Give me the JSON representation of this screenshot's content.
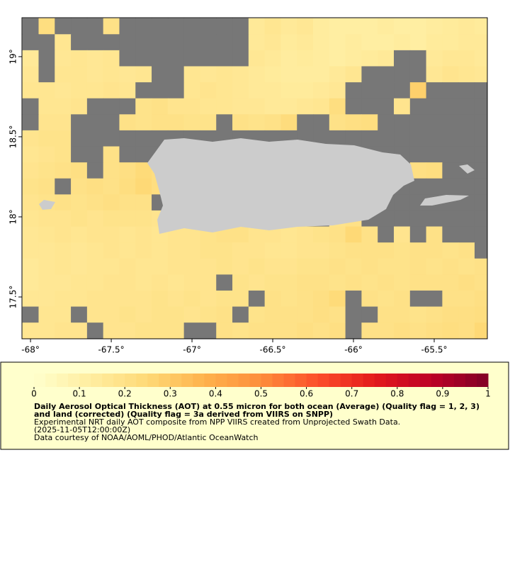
{
  "chart_data": {
    "type": "heatmap",
    "title": "Daily Aerosol Optical Thickness (AOT) at 0.55 micron for both ocean (Average) (Quality flag = 1, 2, 3) and land (corrected) (Quality flag = 3a derived from VIIRS on SNPP)",
    "notes": [
      "Experimental NRT daily AOT composite from NPP VIIRS created from Unprojected Swath Data.",
      "(2025-11-05T12:00:00Z)",
      "Data courtesy of NOAA/AOML/PHOD/Atlantic OceanWatch"
    ],
    "xlim": [
      -68.053,
      -65.171
    ],
    "ylim": [
      17.239,
      19.243
    ],
    "xticks": [
      {
        "value": -68,
        "label": "-68°"
      },
      {
        "value": -67.5,
        "label": "-67.5°"
      },
      {
        "value": -67,
        "label": "-67°"
      },
      {
        "value": -66.5,
        "label": "-66.5°"
      },
      {
        "value": -66,
        "label": "-66°"
      },
      {
        "value": -65.5,
        "label": "-65.5°"
      }
    ],
    "yticks": [
      {
        "value": 17.5,
        "label": "17.5°"
      },
      {
        "value": 18,
        "label": "18°"
      },
      {
        "value": 18.5,
        "label": "18.5°"
      },
      {
        "value": 19,
        "label": "19°"
      }
    ],
    "x": [
      -68.0,
      -67.9,
      -67.8,
      -67.7,
      -67.6,
      -67.5,
      -67.4,
      -67.3,
      -67.2,
      -67.1,
      -67.0,
      -66.9,
      -66.8,
      -66.7,
      -66.6,
      -66.5,
      -66.4,
      -66.3,
      -66.2,
      -66.1,
      -66.0,
      -65.9,
      -65.8,
      -65.7,
      -65.6,
      -65.5,
      -65.4,
      -65.3,
      -65.2
    ],
    "y": [
      19.19,
      19.09,
      18.99,
      18.89,
      18.79,
      18.69,
      18.59,
      18.49,
      18.39,
      18.29,
      18.19,
      18.09,
      17.99,
      17.89,
      17.79,
      17.69,
      17.59,
      17.49,
      17.39,
      17.29
    ],
    "values": [
      [
        null,
        0.22,
        null,
        null,
        null,
        0.2,
        null,
        null,
        null,
        null,
        null,
        null,
        null,
        null,
        0.15,
        0.17,
        0.15,
        0.16,
        0.13,
        0.12,
        0.12,
        0.12,
        0.13,
        0.12,
        0.12,
        0.13,
        0.14,
        0.15,
        0.14
      ],
      [
        null,
        null,
        0.17,
        null,
        null,
        null,
        null,
        null,
        null,
        null,
        null,
        null,
        null,
        null,
        0.15,
        0.16,
        0.14,
        0.15,
        0.13,
        0.12,
        0.13,
        0.12,
        0.12,
        0.13,
        0.12,
        0.14,
        0.14,
        0.15,
        0.15
      ],
      [
        0.15,
        null,
        0.16,
        0.17,
        0.16,
        0.17,
        null,
        null,
        null,
        null,
        null,
        null,
        null,
        null,
        0.16,
        0.15,
        0.13,
        0.14,
        0.13,
        0.12,
        0.13,
        0.14,
        0.15,
        null,
        null,
        0.15,
        0.16,
        0.16,
        0.15
      ],
      [
        0.16,
        null,
        0.17,
        0.17,
        0.16,
        0.17,
        0.16,
        0.17,
        null,
        null,
        0.17,
        0.16,
        0.17,
        0.16,
        0.15,
        0.14,
        0.13,
        0.13,
        0.13,
        0.15,
        0.17,
        null,
        null,
        null,
        null,
        0.16,
        0.18,
        0.17,
        0.16
      ],
      [
        0.17,
        0.17,
        0.16,
        0.17,
        0.17,
        0.18,
        0.17,
        null,
        null,
        null,
        0.17,
        0.18,
        0.17,
        0.16,
        0.15,
        0.15,
        0.14,
        0.14,
        0.15,
        0.16,
        null,
        null,
        null,
        null,
        0.28,
        null,
        null,
        null,
        null
      ],
      [
        null,
        0.17,
        0.17,
        0.18,
        null,
        null,
        null,
        0.19,
        0.2,
        0.18,
        0.18,
        0.17,
        0.17,
        0.16,
        0.16,
        0.15,
        0.15,
        0.16,
        0.17,
        0.22,
        null,
        null,
        null,
        0.18,
        null,
        null,
        null,
        null,
        null
      ],
      [
        null,
        0.18,
        0.18,
        null,
        null,
        null,
        0.2,
        0.19,
        0.2,
        0.2,
        0.19,
        0.19,
        null,
        0.2,
        0.19,
        0.2,
        0.23,
        null,
        null,
        0.2,
        0.21,
        0.22,
        null,
        null,
        null,
        null,
        null,
        null,
        null
      ],
      [
        0.18,
        0.19,
        0.19,
        null,
        null,
        null,
        null,
        null,
        null,
        null,
        null,
        null,
        null,
        null,
        null,
        null,
        null,
        null,
        null,
        null,
        null,
        null,
        null,
        null,
        null,
        null,
        null,
        null,
        null
      ],
      [
        0.17,
        0.18,
        0.19,
        null,
        null,
        0.2,
        null,
        null,
        null,
        null,
        null,
        null,
        null,
        null,
        null,
        null,
        null,
        null,
        null,
        null,
        null,
        null,
        null,
        null,
        null,
        null,
        null,
        null,
        null
      ],
      [
        0.18,
        0.19,
        0.2,
        0.21,
        null,
        0.2,
        0.21,
        0.24,
        0.22,
        null,
        null,
        null,
        null,
        null,
        null,
        null,
        null,
        null,
        null,
        null,
        null,
        null,
        null,
        null,
        0.21,
        0.22,
        null,
        null,
        null
      ],
      [
        0.19,
        0.2,
        null,
        0.2,
        0.21,
        0.2,
        0.22,
        0.25,
        0.22,
        null,
        null,
        null,
        null,
        null,
        null,
        null,
        null,
        null,
        null,
        null,
        null,
        null,
        null,
        null,
        null,
        null,
        null,
        null,
        null
      ],
      [
        0.18,
        0.19,
        0.2,
        0.19,
        0.2,
        0.21,
        0.2,
        0.2,
        null,
        null,
        null,
        null,
        null,
        null,
        null,
        null,
        null,
        null,
        null,
        null,
        null,
        null,
        null,
        null,
        null,
        null,
        null,
        null,
        null
      ],
      [
        0.17,
        0.18,
        0.18,
        0.19,
        0.18,
        0.19,
        0.19,
        0.19,
        0.18,
        null,
        null,
        null,
        null,
        null,
        null,
        null,
        null,
        null,
        null,
        0.19,
        0.2,
        null,
        null,
        null,
        null,
        null,
        null,
        null,
        null
      ],
      [
        0.16,
        0.17,
        0.18,
        0.17,
        0.18,
        0.18,
        0.17,
        0.18,
        0.17,
        0.18,
        0.18,
        0.19,
        0.2,
        0.2,
        0.18,
        0.18,
        0.17,
        0.18,
        0.19,
        0.2,
        0.25,
        0.2,
        null,
        0.18,
        null,
        0.2,
        null,
        null,
        null
      ],
      [
        0.16,
        0.16,
        0.17,
        0.16,
        0.17,
        0.18,
        0.17,
        0.18,
        0.17,
        0.18,
        0.18,
        0.19,
        0.19,
        0.18,
        0.18,
        0.17,
        0.17,
        0.18,
        0.18,
        0.19,
        0.2,
        0.2,
        0.2,
        0.19,
        0.2,
        0.2,
        0.19,
        0.2,
        null
      ],
      [
        0.15,
        0.16,
        0.17,
        0.16,
        0.17,
        0.17,
        0.18,
        0.17,
        0.17,
        0.18,
        0.18,
        0.18,
        0.19,
        0.18,
        0.19,
        0.18,
        0.18,
        0.19,
        0.19,
        0.2,
        0.19,
        0.2,
        0.19,
        0.19,
        0.2,
        0.19,
        0.2,
        0.19,
        0.2
      ],
      [
        0.15,
        0.16,
        0.16,
        0.17,
        0.17,
        0.18,
        0.18,
        0.17,
        0.18,
        0.17,
        0.18,
        0.18,
        null,
        0.19,
        0.18,
        0.19,
        0.19,
        0.2,
        0.2,
        0.19,
        0.2,
        0.19,
        0.2,
        0.19,
        0.2,
        0.2,
        0.2,
        0.21,
        0.2
      ],
      [
        0.16,
        0.16,
        0.17,
        0.17,
        0.18,
        0.18,
        0.18,
        0.18,
        0.19,
        0.18,
        0.19,
        0.18,
        0.19,
        0.19,
        null,
        0.2,
        0.19,
        0.2,
        0.21,
        0.24,
        null,
        0.2,
        0.19,
        0.2,
        null,
        null,
        0.2,
        0.2,
        0.21
      ],
      [
        null,
        0.17,
        0.17,
        null,
        0.18,
        0.18,
        0.19,
        0.18,
        0.19,
        0.19,
        0.18,
        0.19,
        0.2,
        null,
        0.19,
        0.2,
        0.2,
        0.2,
        0.21,
        0.2,
        null,
        null,
        0.2,
        0.2,
        0.19,
        0.2,
        0.21,
        0.21,
        0.22
      ],
      [
        0.17,
        0.17,
        0.18,
        0.18,
        null,
        0.18,
        0.18,
        0.19,
        0.19,
        0.19,
        null,
        null,
        0.2,
        0.19,
        0.2,
        0.2,
        0.2,
        0.21,
        0.2,
        0.21,
        null,
        0.2,
        0.2,
        0.21,
        0.2,
        0.21,
        0.22,
        0.21,
        0.25
      ]
    ],
    "colorbar_lim": [
      0,
      1
    ],
    "colorbar_ticks": [
      0,
      0.1,
      0.2,
      0.3,
      0.4,
      0.5,
      0.6,
      0.7,
      0.8,
      0.9,
      1
    ],
    "missing_color": "#777777",
    "land_color": "#cccccc"
  }
}
